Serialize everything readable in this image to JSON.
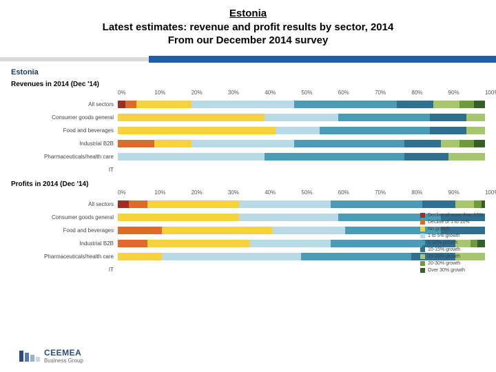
{
  "title": {
    "line1": "Estonia",
    "line2": "Latest estimates: revenue and profit results by sector, 2014",
    "line3": "From our December 2014 survey"
  },
  "country_label": "Estonia",
  "divider": {
    "bg": "#d9d9d9",
    "accent": "#1f5ea8"
  },
  "axis": {
    "ticks": [
      "0%",
      "10%",
      "20%",
      "30%",
      "40%",
      "50%",
      "60%",
      "70%",
      "80%",
      "90%",
      "100%"
    ]
  },
  "palette": {
    "decline_more_10": "#9e2e22",
    "decline_1_10": "#e06a2b",
    "no_growth": "#f6d33c",
    "g_1_5": "#b9dbe8",
    "g_5_10": "#4a9bb5",
    "g_10_15": "#2f6f8f",
    "g_15_20": "#a7c66d",
    "g_20_30": "#6f9a3e",
    "over_30": "#375f2a"
  },
  "legend": [
    {
      "label": "Decline of more than 10%",
      "color_key": "decline_more_10"
    },
    {
      "label": "Decline of 1 to 10%",
      "color_key": "decline_1_10"
    },
    {
      "label": "No growth",
      "color_key": "no_growth"
    },
    {
      "label": "1 to 5% growth",
      "color_key": "g_1_5"
    },
    {
      "label": "5-10% growth",
      "color_key": "g_5_10"
    },
    {
      "label": "10-15% growth",
      "color_key": "g_10_15"
    },
    {
      "label": "15-20% growth",
      "color_key": "g_15_20"
    },
    {
      "label": "20-30% growth",
      "color_key": "g_20_30"
    },
    {
      "label": "Over 30% growth",
      "color_key": "over_30"
    }
  ],
  "sections": [
    {
      "title": "Revenues in 2014 (Dec '14)",
      "rows": [
        {
          "label": "All sectors",
          "segments": [
            {
              "k": "decline_more_10",
              "v": 2
            },
            {
              "k": "decline_1_10",
              "v": 3
            },
            {
              "k": "no_growth",
              "v": 15
            },
            {
              "k": "g_1_5",
              "v": 28
            },
            {
              "k": "g_5_10",
              "v": 28
            },
            {
              "k": "g_10_15",
              "v": 10
            },
            {
              "k": "g_15_20",
              "v": 7
            },
            {
              "k": "g_20_30",
              "v": 4
            },
            {
              "k": "over_30",
              "v": 3
            }
          ]
        },
        {
          "label": "Consumer goods general",
          "segments": [
            {
              "k": "no_growth",
              "v": 40
            },
            {
              "k": "g_1_5",
              "v": 20
            },
            {
              "k": "g_5_10",
              "v": 25
            },
            {
              "k": "g_10_15",
              "v": 10
            },
            {
              "k": "g_15_20",
              "v": 5
            }
          ]
        },
        {
          "label": "Food and beverages",
          "segments": [
            {
              "k": "no_growth",
              "v": 43
            },
            {
              "k": "g_1_5",
              "v": 12
            },
            {
              "k": "g_5_10",
              "v": 30
            },
            {
              "k": "g_10_15",
              "v": 10
            },
            {
              "k": "g_15_20",
              "v": 5
            }
          ]
        },
        {
          "label": "Industrial B2B",
          "segments": [
            {
              "k": "decline_1_10",
              "v": 10
            },
            {
              "k": "no_growth",
              "v": 10
            },
            {
              "k": "g_1_5",
              "v": 28
            },
            {
              "k": "g_5_10",
              "v": 30
            },
            {
              "k": "g_10_15",
              "v": 10
            },
            {
              "k": "g_15_20",
              "v": 5
            },
            {
              "k": "g_20_30",
              "v": 4
            },
            {
              "k": "over_30",
              "v": 3
            }
          ]
        },
        {
          "label": "Pharmaceuticals/health care",
          "segments": [
            {
              "k": "g_1_5",
              "v": 40
            },
            {
              "k": "g_5_10",
              "v": 38
            },
            {
              "k": "g_10_15",
              "v": 12
            },
            {
              "k": "g_15_20",
              "v": 10
            }
          ]
        },
        {
          "label": "IT",
          "segments": []
        }
      ]
    },
    {
      "title": "Profits in 2014 (Dec '14)",
      "rows": [
        {
          "label": "All sectors",
          "segments": [
            {
              "k": "decline_more_10",
              "v": 3
            },
            {
              "k": "decline_1_10",
              "v": 5
            },
            {
              "k": "no_growth",
              "v": 25
            },
            {
              "k": "g_1_5",
              "v": 25
            },
            {
              "k": "g_5_10",
              "v": 25
            },
            {
              "k": "g_10_15",
              "v": 9
            },
            {
              "k": "g_15_20",
              "v": 5
            },
            {
              "k": "g_20_30",
              "v": 2
            },
            {
              "k": "over_30",
              "v": 1
            }
          ]
        },
        {
          "label": "Consumer goods general",
          "segments": [
            {
              "k": "no_growth",
              "v": 33
            },
            {
              "k": "g_1_5",
              "v": 27
            },
            {
              "k": "g_5_10",
              "v": 28
            },
            {
              "k": "g_10_15",
              "v": 12
            }
          ]
        },
        {
          "label": "Food and beverages",
          "segments": [
            {
              "k": "decline_1_10",
              "v": 12
            },
            {
              "k": "no_growth",
              "v": 30
            },
            {
              "k": "g_1_5",
              "v": 20
            },
            {
              "k": "g_5_10",
              "v": 26
            },
            {
              "k": "g_10_15",
              "v": 12
            }
          ]
        },
        {
          "label": "Industrial B2B",
          "segments": [
            {
              "k": "decline_1_10",
              "v": 8
            },
            {
              "k": "no_growth",
              "v": 28
            },
            {
              "k": "g_1_5",
              "v": 22
            },
            {
              "k": "g_5_10",
              "v": 25
            },
            {
              "k": "g_10_15",
              "v": 9
            },
            {
              "k": "g_15_20",
              "v": 4
            },
            {
              "k": "g_20_30",
              "v": 2
            },
            {
              "k": "over_30",
              "v": 2
            }
          ]
        },
        {
          "label": "Pharmaceuticals/health care",
          "segments": [
            {
              "k": "no_growth",
              "v": 12
            },
            {
              "k": "g_1_5",
              "v": 38
            },
            {
              "k": "g_5_10",
              "v": 30
            },
            {
              "k": "g_10_15",
              "v": 12
            },
            {
              "k": "g_15_20",
              "v": 8
            }
          ]
        },
        {
          "label": "IT",
          "segments": []
        }
      ]
    }
  ],
  "logo": {
    "brand": "CEEMEA",
    "sub": "Business Group",
    "bar_colors": [
      "#2a4b7c",
      "#5a7ba8",
      "#9ab3cc",
      "#c9d6e4"
    ]
  }
}
